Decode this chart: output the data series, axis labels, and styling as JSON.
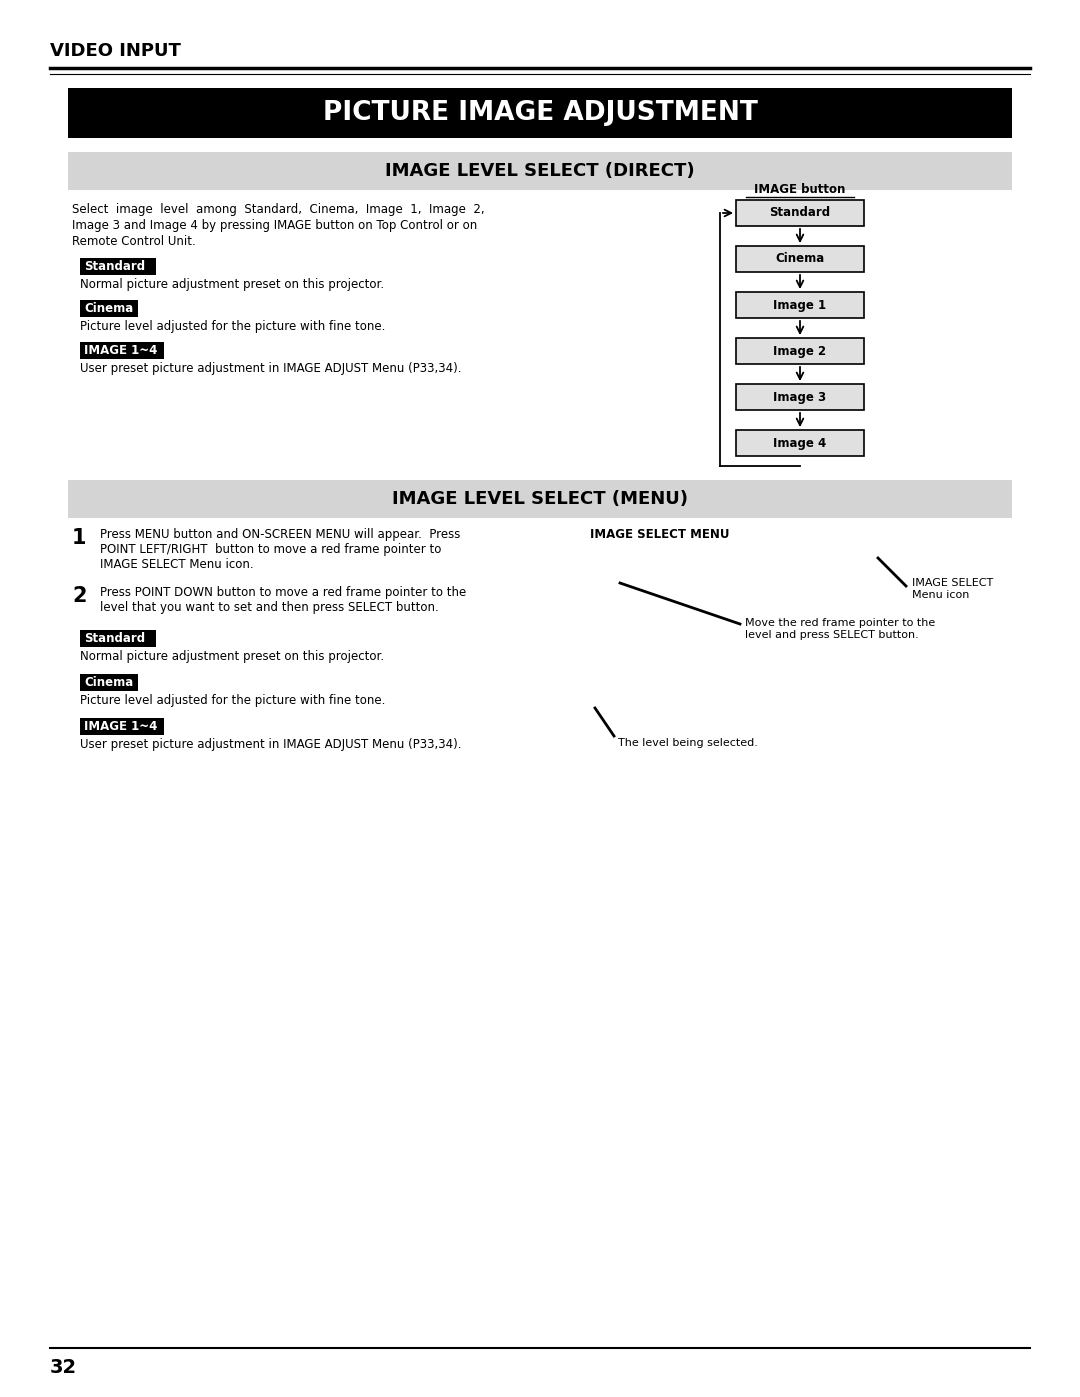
{
  "page_bg": "#ffffff",
  "header_text": "VIDEO INPUT",
  "main_title": "PICTURE IMAGE ADJUSTMENT",
  "main_title_bg": "#000000",
  "main_title_color": "#ffffff",
  "section1_title": "IMAGE LEVEL SELECT (DIRECT)",
  "section1_title_bg": "#d4d4d4",
  "section1_title_color": "#000000",
  "section1_body_line1": "Select  image  level  among  Standard,  Cinema,  Image  1,  Image  2,",
  "section1_body_line2": "Image 3 and Image 4 by pressing IMAGE button on Top Control or on",
  "section1_body_line3": "Remote Control Unit.",
  "standard_label": "Standard",
  "standard_desc": "Normal picture adjustment preset on this projector.",
  "cinema_label": "Cinema",
  "cinema_desc": "Picture level adjusted for the picture with fine tone.",
  "image14_label": "IMAGE 1~4",
  "image14_desc": "User preset picture adjustment in IMAGE ADJUST Menu (P33,34).",
  "diagram_title": "IMAGE button",
  "diagram_boxes": [
    "Standard",
    "Cinema",
    "Image 1",
    "Image 2",
    "Image 3",
    "Image 4"
  ],
  "section2_title": "IMAGE LEVEL SELECT (MENU)",
  "section2_title_bg": "#d4d4d4",
  "section2_title_color": "#000000",
  "step1_num": "1",
  "step1_line1": "Press MENU button and ON-SCREEN MENU will appear.  Press",
  "step1_line2": "POINT LEFT/RIGHT  button to move a red frame pointer to",
  "step1_line3": "IMAGE SELECT Menu icon.",
  "step2_num": "2",
  "step2_line1": "Press POINT DOWN button to move a red frame pointer to the",
  "step2_line2": "level that you want to set and then press SELECT button.",
  "menu_title": "IMAGE SELECT MENU",
  "menu_label1_line1": "IMAGE SELECT",
  "menu_label1_line2": "Menu icon",
  "menu_label2_line1": "Move the red frame pointer to the",
  "menu_label2_line2": "level and press SELECT button.",
  "menu_label3": "The level being selected.",
  "footer_page": "32"
}
